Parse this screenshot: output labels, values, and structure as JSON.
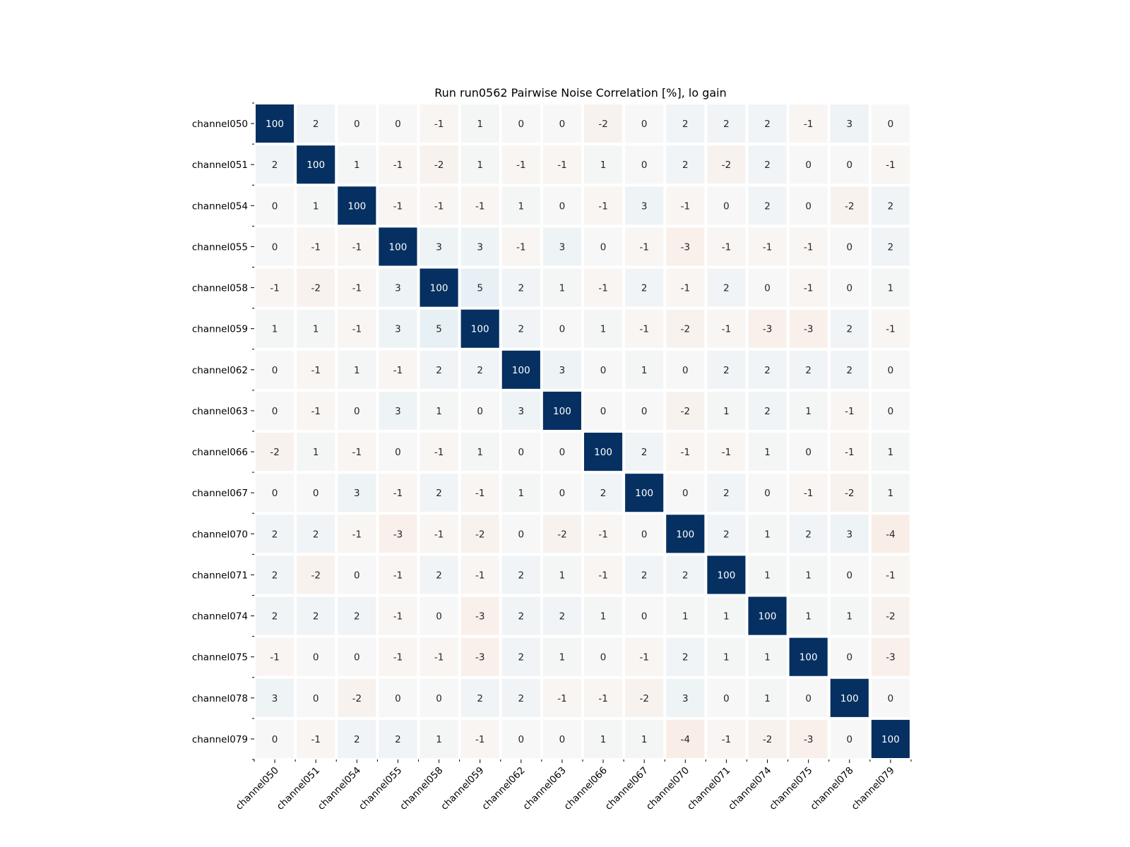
{
  "chart_data": {
    "type": "heatmap",
    "title": "Run run0562 Pairwise Noise Correlation [%], lo gain",
    "xlabel": "",
    "ylabel": "",
    "colormap": "diverging red-white-blue (RdBu)",
    "color_range": [
      -100,
      100
    ],
    "colors": {
      "positive_max": "#053061",
      "neutral": "#f7f7f7",
      "negative_max": "#67001f"
    },
    "x_labels": [
      "channel050",
      "channel051",
      "channel054",
      "channel055",
      "channel058",
      "channel059",
      "channel062",
      "channel063",
      "channel066",
      "channel067",
      "channel070",
      "channel071",
      "channel074",
      "channel075",
      "channel078",
      "channel079"
    ],
    "y_labels": [
      "channel050",
      "channel051",
      "channel054",
      "channel055",
      "channel058",
      "channel059",
      "channel062",
      "channel063",
      "channel066",
      "channel067",
      "channel070",
      "channel071",
      "channel074",
      "channel075",
      "channel078",
      "channel079"
    ],
    "values": [
      [
        100,
        2,
        0,
        0,
        -1,
        1,
        0,
        0,
        -2,
        0,
        2,
        2,
        2,
        -1,
        3,
        0
      ],
      [
        2,
        100,
        1,
        -1,
        -2,
        1,
        -1,
        -1,
        1,
        0,
        2,
        -2,
        2,
        0,
        0,
        -1
      ],
      [
        0,
        1,
        100,
        -1,
        -1,
        -1,
        1,
        0,
        -1,
        3,
        -1,
        0,
        2,
        0,
        -2,
        2
      ],
      [
        0,
        -1,
        -1,
        100,
        3,
        3,
        -1,
        3,
        0,
        -1,
        -3,
        -1,
        -1,
        -1,
        0,
        2
      ],
      [
        -1,
        -2,
        -1,
        3,
        100,
        5,
        2,
        1,
        -1,
        2,
        -1,
        2,
        0,
        -1,
        0,
        1
      ],
      [
        1,
        1,
        -1,
        3,
        5,
        100,
        2,
        0,
        1,
        -1,
        -2,
        -1,
        -3,
        -3,
        2,
        -1
      ],
      [
        0,
        -1,
        1,
        -1,
        2,
        2,
        100,
        3,
        0,
        1,
        0,
        2,
        2,
        2,
        2,
        0
      ],
      [
        0,
        -1,
        0,
        3,
        1,
        0,
        3,
        100,
        0,
        0,
        -2,
        1,
        2,
        1,
        -1,
        0
      ],
      [
        -2,
        1,
        -1,
        0,
        -1,
        1,
        0,
        0,
        100,
        2,
        -1,
        -1,
        1,
        0,
        -1,
        1
      ],
      [
        0,
        0,
        3,
        -1,
        2,
        -1,
        1,
        0,
        2,
        100,
        0,
        2,
        0,
        -1,
        -2,
        1
      ],
      [
        2,
        2,
        -1,
        -3,
        -1,
        -2,
        0,
        -2,
        -1,
        0,
        100,
        2,
        1,
        2,
        3,
        -4
      ],
      [
        2,
        -2,
        0,
        -1,
        2,
        -1,
        2,
        1,
        -1,
        2,
        2,
        100,
        1,
        1,
        0,
        -1
      ],
      [
        2,
        2,
        2,
        -1,
        0,
        -3,
        2,
        2,
        1,
        0,
        1,
        1,
        100,
        1,
        1,
        -2
      ],
      [
        -1,
        0,
        0,
        -1,
        -1,
        -3,
        2,
        1,
        0,
        -1,
        2,
        1,
        1,
        100,
        0,
        -3
      ],
      [
        3,
        0,
        -2,
        0,
        0,
        2,
        2,
        -1,
        -1,
        -2,
        3,
        0,
        1,
        0,
        100,
        0
      ],
      [
        0,
        -1,
        2,
        2,
        1,
        -1,
        0,
        0,
        1,
        1,
        -4,
        -1,
        -2,
        -3,
        0,
        100
      ]
    ],
    "grid": false,
    "legend": "none"
  }
}
